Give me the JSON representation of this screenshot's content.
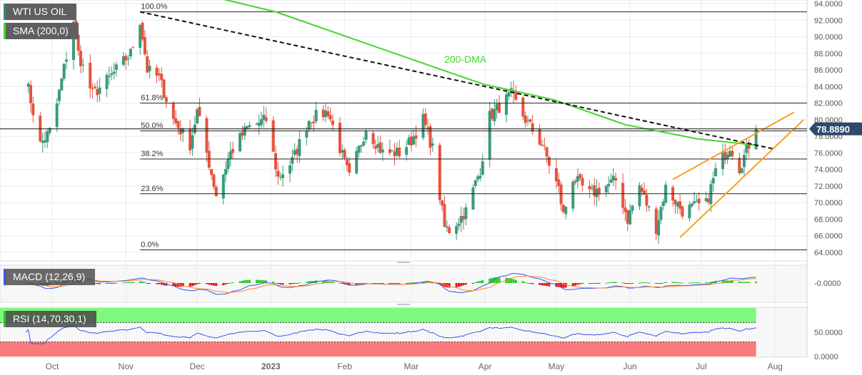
{
  "legend": {
    "instrument": "WTI US OIL",
    "sma": "SMA (200,0)",
    "macd": "MACD (12,26,9)",
    "rsi": "RSI (14,70,30,1)"
  },
  "annotation": {
    "dma_label": "200-DMA",
    "current_price": "78.8890"
  },
  "colors": {
    "up": "#3a9a7a",
    "down": "#e5533d",
    "sma": "#44d62c",
    "channel": "#ff9e1b",
    "trend": "#111111",
    "macd": "#3355ee",
    "signal": "#ff8833",
    "hist_up": "#22cc22",
    "hist_down": "#ee1111",
    "rsi": "#3355ee",
    "rsi_over": "#7dfa7d",
    "rsi_under": "#fa7b7b"
  },
  "chart_data": {
    "type": "candlestick",
    "ylim": [
      64,
      94
    ],
    "yticks": [
      "94.0000",
      "92.0000",
      "90.0000",
      "88.0000",
      "86.0000",
      "84.0000",
      "82.0000",
      "80.0000",
      "78.0000",
      "76.0000",
      "74.0000",
      "72.0000",
      "70.0000",
      "68.0000",
      "66.0000",
      "64.0000"
    ],
    "xticks": [
      {
        "label": "Oct",
        "date": "2022-10-01"
      },
      {
        "label": "Nov",
        "date": "2022-11-01"
      },
      {
        "label": "Dec",
        "date": "2022-12-01"
      },
      {
        "label": "2023",
        "date": "2023-01-01"
      },
      {
        "label": "Feb",
        "date": "2023-02-01"
      },
      {
        "label": "Mar",
        "date": "2023-03-01"
      },
      {
        "label": "Apr",
        "date": "2023-04-01"
      },
      {
        "label": "May",
        "date": "2023-05-01"
      },
      {
        "label": "Jun",
        "date": "2023-06-01"
      },
      {
        "label": "Jul",
        "date": "2023-07-01"
      },
      {
        "label": "Aug",
        "date": "2023-08-01"
      }
    ],
    "close_path": [
      [
        "2022-09-20",
        85
      ],
      [
        "2022-09-26",
        77
      ],
      [
        "2022-10-01",
        79
      ],
      [
        "2022-10-10",
        92
      ],
      [
        "2022-10-12",
        88
      ],
      [
        "2022-10-18",
        83
      ],
      [
        "2022-10-25",
        85
      ],
      [
        "2022-11-03",
        88
      ],
      [
        "2022-11-07",
        92
      ],
      [
        "2022-11-10",
        86
      ],
      [
        "2022-11-15",
        85
      ],
      [
        "2022-11-21",
        80
      ],
      [
        "2022-11-28",
        77
      ],
      [
        "2022-12-01",
        81
      ],
      [
        "2022-12-09",
        71
      ],
      [
        "2022-12-15",
        76
      ],
      [
        "2022-12-22",
        79
      ],
      [
        "2022-12-30",
        80
      ],
      [
        "2023-01-04",
        73
      ],
      [
        "2023-01-10",
        75
      ],
      [
        "2023-01-17",
        80
      ],
      [
        "2023-01-25",
        81
      ],
      [
        "2023-02-03",
        73
      ],
      [
        "2023-02-10",
        79
      ],
      [
        "2023-02-17",
        76
      ],
      [
        "2023-02-24",
        76
      ],
      [
        "2023-03-01",
        77.5
      ],
      [
        "2023-03-06",
        80
      ],
      [
        "2023-03-10",
        76.5
      ],
      [
        "2023-03-15",
        67
      ],
      [
        "2023-03-17",
        66.7
      ],
      [
        "2023-03-20",
        67.6
      ],
      [
        "2023-03-24",
        69
      ],
      [
        "2023-03-30",
        74
      ],
      [
        "2023-04-03",
        80.4
      ],
      [
        "2023-04-12",
        83
      ],
      [
        "2023-04-18",
        80
      ],
      [
        "2023-04-25",
        77
      ],
      [
        "2023-05-02",
        71.6
      ],
      [
        "2023-05-04",
        68.5
      ],
      [
        "2023-05-08",
        73
      ],
      [
        "2023-05-15",
        71
      ],
      [
        "2023-05-22",
        72
      ],
      [
        "2023-05-26",
        72.7
      ],
      [
        "2023-05-31",
        68
      ],
      [
        "2023-06-05",
        72
      ],
      [
        "2023-06-12",
        67
      ],
      [
        "2023-06-16",
        71.8
      ],
      [
        "2023-06-23",
        69
      ],
      [
        "2023-06-28",
        69.5
      ],
      [
        "2023-07-03",
        69.8
      ],
      [
        "2023-07-07",
        73.8
      ],
      [
        "2023-07-13",
        76.9
      ],
      [
        "2023-07-17",
        74.2
      ],
      [
        "2023-07-21",
        77
      ],
      [
        "2023-07-24",
        78.9
      ]
    ],
    "sma200": [
      [
        "2022-12-05",
        95
      ],
      [
        "2023-01-03",
        93
      ],
      [
        "2023-02-05",
        89.7
      ],
      [
        "2023-03-07",
        86.7
      ],
      [
        "2023-03-31",
        84.3
      ],
      [
        "2023-04-30",
        82.4
      ],
      [
        "2023-05-30",
        79.4
      ],
      [
        "2023-06-29",
        77.7
      ],
      [
        "2023-07-25",
        76.9
      ]
    ],
    "trendline": [
      [
        "2022-11-07",
        93.0
      ],
      [
        "2023-07-31",
        76.5
      ]
    ],
    "channel_upper": [
      [
        "2023-06-19",
        72.8
      ],
      [
        "2023-08-09",
        80.9
      ]
    ],
    "channel_lower": [
      [
        "2023-06-22",
        65.8
      ],
      [
        "2023-08-13",
        80.0
      ]
    ],
    "fibonacci": {
      "start": "2022-11-07",
      "levels": [
        {
          "label": "100.0%",
          "value": 93.0
        },
        {
          "label": "61.8%",
          "value": 82.0
        },
        {
          "label": "50.0%",
          "value": 78.65
        },
        {
          "label": "38.2%",
          "value": 75.26
        },
        {
          "label": "23.6%",
          "value": 71.07
        },
        {
          "label": "0.0%",
          "value": 64.3
        }
      ]
    },
    "current_price": 78.889,
    "macd": {
      "ytick": "-0.0000"
    },
    "rsi": {
      "yticks": [
        "50.0000",
        "0.0000"
      ],
      "overbought": 70,
      "oversold": 30
    }
  }
}
